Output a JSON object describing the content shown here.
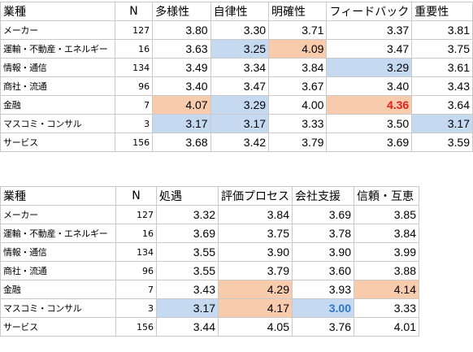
{
  "table1": {
    "headers": [
      "業種",
      "N",
      "多様性",
      "自律性",
      "明確性",
      "フィードバック",
      "重要性"
    ],
    "rows": [
      {
        "name": "メーカー",
        "n": "127",
        "values": [
          "3.80",
          "3.30",
          "3.71",
          "3.37",
          "3.81"
        ]
      },
      {
        "name": "運輸・不動産・エネルギー",
        "n": "16",
        "values": [
          "3.63",
          "3.25",
          "4.09",
          "3.47",
          "3.75"
        ]
      },
      {
        "name": "情報・通信",
        "n": "134",
        "values": [
          "3.49",
          "3.34",
          "3.84",
          "3.29",
          "3.61"
        ]
      },
      {
        "name": "商社・流通",
        "n": "96",
        "values": [
          "3.40",
          "3.47",
          "3.67",
          "3.40",
          "3.43"
        ]
      },
      {
        "name": "金融",
        "n": "7",
        "values": [
          "4.07",
          "3.29",
          "4.00",
          "4.36",
          "3.64"
        ]
      },
      {
        "name": "マスコミ・コンサル",
        "n": "3",
        "values": [
          "3.17",
          "3.17",
          "3.33",
          "3.50",
          "3.17"
        ]
      },
      {
        "name": "サービス",
        "n": "156",
        "values": [
          "3.68",
          "3.42",
          "3.79",
          "3.69",
          "3.59"
        ]
      }
    ]
  },
  "table2": {
    "headers": [
      "業種",
      "N",
      "処遇",
      "評価プロセス",
      "会社支援",
      "信頼・互恵"
    ],
    "rows": [
      {
        "name": "メーカー",
        "n": "127",
        "values": [
          "3.32",
          "3.84",
          "3.69",
          "3.85"
        ]
      },
      {
        "name": "運輸・不動産・エネルギー",
        "n": "16",
        "values": [
          "3.69",
          "3.75",
          "3.78",
          "3.84"
        ]
      },
      {
        "name": "情報・通信",
        "n": "134",
        "values": [
          "3.55",
          "3.90",
          "3.90",
          "3.99"
        ]
      },
      {
        "name": "商社・流通",
        "n": "96",
        "values": [
          "3.55",
          "3.79",
          "3.60",
          "3.88"
        ]
      },
      {
        "name": "金融",
        "n": "7",
        "values": [
          "3.43",
          "4.29",
          "3.93",
          "4.14"
        ]
      },
      {
        "name": "マスコミ・コンサル",
        "n": "3",
        "values": [
          "3.17",
          "4.17",
          "3.00",
          "3.33"
        ]
      },
      {
        "name": "サービス",
        "n": "156",
        "values": [
          "3.44",
          "4.05",
          "3.76",
          "4.01"
        ]
      }
    ]
  },
  "colors": {
    "highlight_blue": "#c5d9f1",
    "highlight_orange": "#f8cbad",
    "emphasis_red": "#e0201b",
    "emphasis_blue": "#2e75c8",
    "grid": "#c9c9c9"
  }
}
